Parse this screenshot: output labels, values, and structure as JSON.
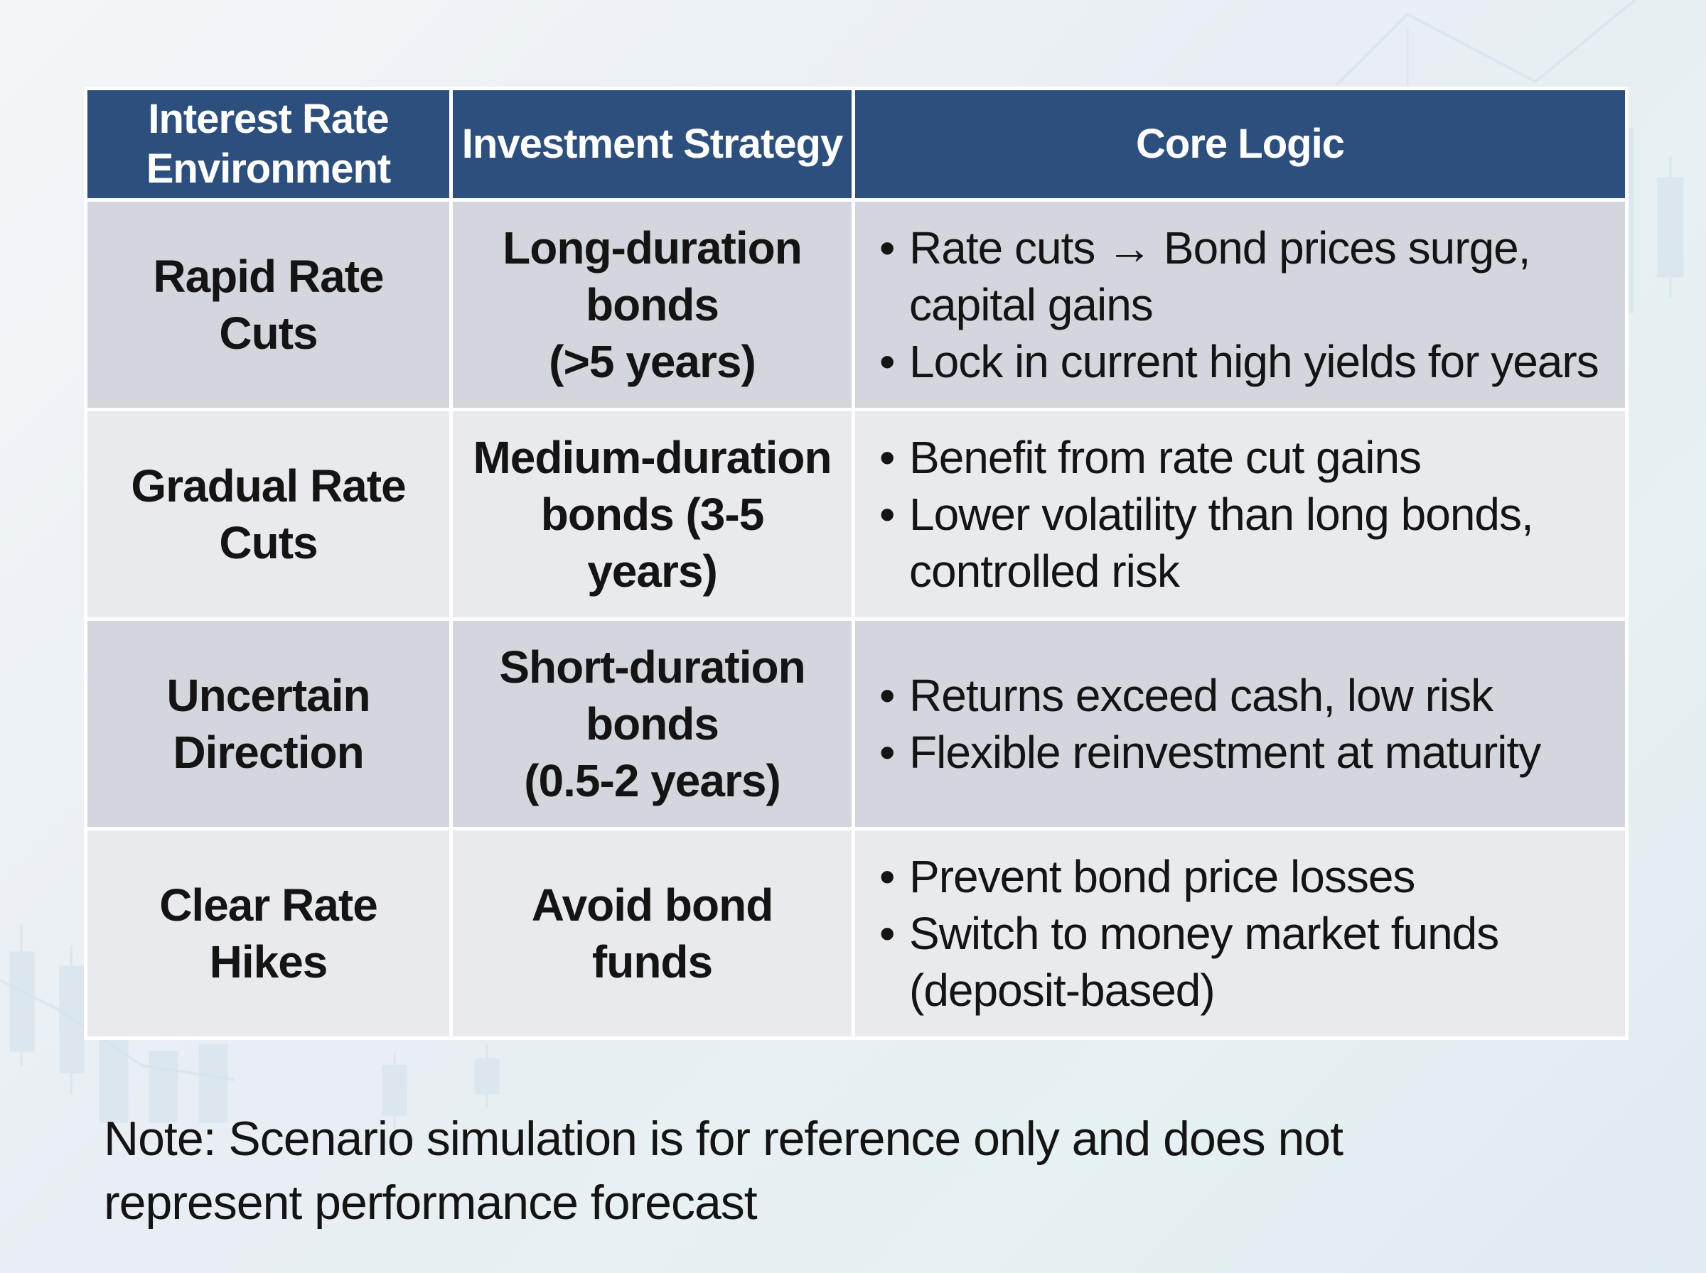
{
  "table": {
    "headers": [
      "Interest Rate\nEnvironment",
      "Investment Strategy",
      "Core Logic"
    ],
    "rows": [
      {
        "environment": "Rapid Rate Cuts",
        "strategy": "Long-duration\nbonds\n(>5 years)",
        "logic": [
          "Rate cuts → Bond prices surge, capital gains",
          "Lock in current high yields for years"
        ]
      },
      {
        "environment": "Gradual Rate\nCuts",
        "strategy": "Medium-duration\nbonds (3-5 years)",
        "logic": [
          "Benefit from rate cut gains",
          "Lower volatility than long bonds, controlled risk"
        ]
      },
      {
        "environment": "Uncertain\nDirection",
        "strategy": "Short-duration\nbonds\n(0.5-2 years)",
        "logic": [
          "Returns exceed cash, low risk",
          "Flexible reinvestment at maturity"
        ]
      },
      {
        "environment": "Clear Rate Hikes",
        "strategy": "Avoid bond\nfunds",
        "logic": [
          "Prevent bond price losses",
          "Switch to money market funds (deposit-based)"
        ]
      }
    ]
  },
  "note": "Note: Scenario simulation is for reference only and does not represent performance forecast",
  "colors": {
    "header_bg": "#2d4f7e",
    "row_dark": "#d4d6dd",
    "row_light": "#e9eaee"
  }
}
